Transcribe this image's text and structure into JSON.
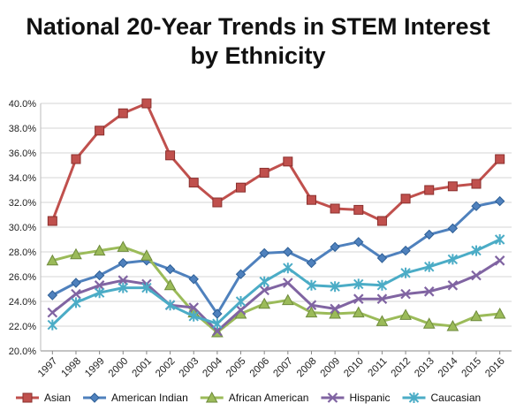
{
  "title_line1": "National 20-Year Trends in STEM Interest",
  "title_line2": "by Ethnicity",
  "chart_data": {
    "type": "line",
    "title": "National 20-Year Trends in STEM Interest by Ethnicity",
    "xlabel": "",
    "ylabel": "",
    "ylim": [
      20,
      40
    ],
    "y_tick_step": 2,
    "y_tick_format": "percent-1dp",
    "grid": "horizontal",
    "legend_position": "bottom",
    "categories": [
      "1997",
      "1998",
      "1999",
      "2000",
      "2001",
      "2002",
      "2003",
      "2004",
      "2005",
      "2006",
      "2007",
      "2008",
      "2009",
      "2010",
      "2011",
      "2012",
      "2013",
      "2014",
      "2015",
      "2016"
    ],
    "series": [
      {
        "name": "Asian",
        "color": "#c0504d",
        "marker": "square",
        "values": [
          30.5,
          35.5,
          37.8,
          39.2,
          40.0,
          35.8,
          33.6,
          32.0,
          33.2,
          34.4,
          35.3,
          32.2,
          31.5,
          31.4,
          30.5,
          32.3,
          33.0,
          33.3,
          33.5,
          35.5
        ]
      },
      {
        "name": "American Indian",
        "color": "#4f81bd",
        "marker": "diamond",
        "values": [
          24.5,
          25.5,
          26.1,
          27.1,
          27.3,
          26.6,
          25.8,
          23.0,
          26.2,
          27.9,
          28.0,
          27.1,
          28.4,
          28.8,
          27.5,
          28.1,
          29.4,
          29.9,
          31.7,
          32.1
        ]
      },
      {
        "name": "African American",
        "color": "#9bbb59",
        "marker": "triangle",
        "values": [
          27.3,
          27.8,
          28.1,
          28.4,
          27.7,
          25.3,
          23.1,
          21.5,
          23.0,
          23.8,
          24.1,
          23.1,
          23.0,
          23.1,
          22.4,
          22.9,
          22.2,
          22.0,
          22.8,
          23.0
        ]
      },
      {
        "name": "Hispanic",
        "color": "#8064a2",
        "marker": "x",
        "values": [
          23.1,
          24.6,
          25.3,
          25.7,
          25.4,
          23.7,
          23.5,
          21.6,
          23.3,
          24.9,
          25.5,
          23.7,
          23.4,
          24.2,
          24.2,
          24.6,
          24.8,
          25.3,
          26.1,
          27.3
        ]
      },
      {
        "name": "Caucasian",
        "color": "#4bacc6",
        "marker": "star",
        "values": [
          22.1,
          23.9,
          24.7,
          25.1,
          25.1,
          23.7,
          22.8,
          22.2,
          24.0,
          25.6,
          26.7,
          25.3,
          25.2,
          25.4,
          25.3,
          26.3,
          26.8,
          27.4,
          28.1,
          29.0
        ]
      }
    ]
  }
}
